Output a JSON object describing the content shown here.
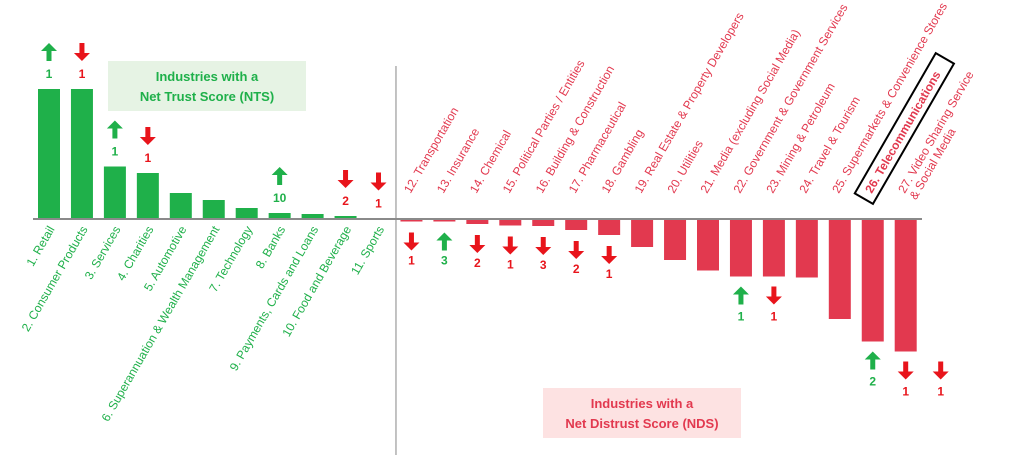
{
  "chart_data": {
    "type": "bar",
    "title": "",
    "xlabel": "",
    "ylabel": "",
    "ylim": [
      -30,
      30
    ],
    "grid": false,
    "legend": "none",
    "colors": {
      "trust": "#1fb04a",
      "distrust": "#e2394f",
      "up_arrow": "#1fb04a",
      "down_arrow": "#e8141b",
      "trust_box_bg": "#e6f3e4",
      "distrust_box_bg": "#fde2e2",
      "axis": "#8a8a8a"
    },
    "boxes": {
      "trust": {
        "line1": "Industries with a",
        "line2": "Net Trust Score (NTS)"
      },
      "distrust": {
        "line1": "Industries with a",
        "line2": "Net Distrust Score (NDS)"
      }
    },
    "categories": [
      "1. Retail",
      "2. Consumer Products",
      "3. Services",
      "4. Charities",
      "5. Automotive",
      "6. Superannuation & Wealth Management",
      "7. Technology",
      "8. Banks",
      "9. Payments, Cards and Loans",
      "10. Food and Beverage",
      "11. Sports",
      "12. Transportation",
      "13. Insurance",
      "14. Chemical",
      "15. Political Parties / Entities",
      "16. Building & Construction",
      "17. Pharmaceutical",
      "18. Gambling",
      "19. Real Estate & Property Developers",
      "20. Utilities",
      "21. Media (excluding Social Media)",
      "22. Government & Government Services",
      "23. Mining & Petroleum",
      "24. Travel & Tourism",
      "25. Supermarkets & Convenience Stores",
      "26. Telecommunications",
      "27. Video Sharing Service & Social Media"
    ],
    "values": [
      26,
      26,
      10.5,
      9.2,
      5.2,
      3.8,
      2.2,
      1.2,
      1.0,
      0.6,
      0.1,
      -0.5,
      -0.5,
      -1.0,
      -1.3,
      -1.4,
      -2.2,
      -3.2,
      -5.6,
      -8.2,
      -10.3,
      -11.5,
      -11.5,
      -11.7,
      -20.0,
      -24.5,
      -26.5
    ],
    "rank_changes": [
      {
        "index": 0,
        "dir": "up",
        "value": "1"
      },
      {
        "index": 1,
        "dir": "down",
        "value": "1"
      },
      {
        "index": 2,
        "dir": "up",
        "value": "1"
      },
      {
        "index": 3,
        "dir": "down",
        "value": "1"
      },
      {
        "index": 7,
        "dir": "up",
        "value": "10"
      },
      {
        "index": 9,
        "dir": "down",
        "value": "2"
      },
      {
        "index": 10,
        "dir": "down",
        "value": "1"
      },
      {
        "index": 11,
        "dir": "down",
        "value": "1"
      },
      {
        "index": 12,
        "dir": "up",
        "value": "3"
      },
      {
        "index": 13,
        "dir": "down",
        "value": "2"
      },
      {
        "index": 14,
        "dir": "down",
        "value": "1"
      },
      {
        "index": 15,
        "dir": "down",
        "value": "3"
      },
      {
        "index": 16,
        "dir": "down",
        "value": "2"
      },
      {
        "index": 17,
        "dir": "down",
        "value": "1"
      },
      {
        "index": 21,
        "dir": "up",
        "value": "1"
      },
      {
        "index": 22,
        "dir": "down",
        "value": "1"
      },
      {
        "index": 25,
        "dir": "up",
        "value": "2"
      },
      {
        "index": 26,
        "dir": "down",
        "value": "1"
      },
      {
        "index": 27,
        "dir": "down",
        "value": "1"
      }
    ],
    "highlight_index": 25
  }
}
